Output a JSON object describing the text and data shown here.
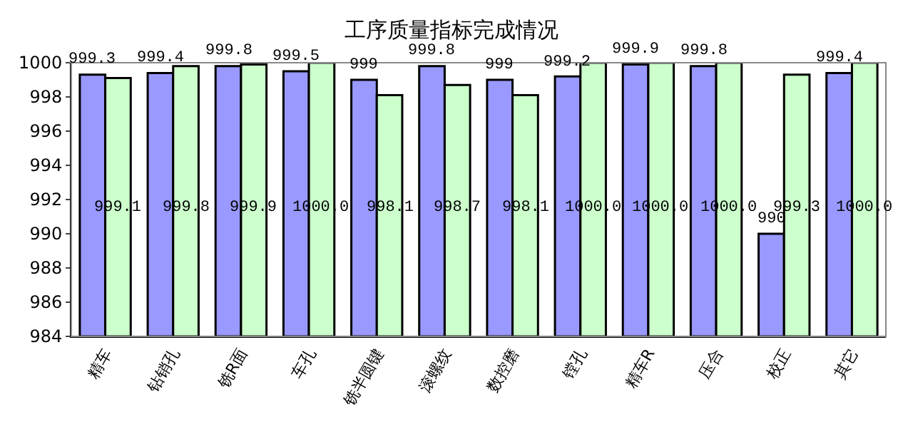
{
  "chart_data": {
    "type": "bar",
    "title": "工序质量指标完成情况",
    "categories": [
      "精车",
      "钻销孔",
      "铣R面",
      "车孔",
      "铣半圆键",
      "滚螺纹",
      "数控磨",
      "镗孔",
      "精车R",
      "压合",
      "校正",
      "其它"
    ],
    "series": [
      {
        "color": "#9999ff",
        "values": [
          999.3,
          999.4,
          999.8,
          999.5,
          999,
          999.8,
          999,
          999.2,
          999.9,
          999.8,
          990,
          999.4
        ],
        "value_labels": [
          "999.3",
          "999.4",
          "999.8",
          "999.5",
          "999",
          "999.8",
          "999",
          "999.2",
          "999.9",
          "999.8",
          "990",
          "999.4"
        ]
      },
      {
        "color": "#ccffcc",
        "values": [
          999.1,
          999.8,
          999.9,
          1000.0,
          998.1,
          998.7,
          998.1,
          1000.0,
          1000.0,
          1000.0,
          999.3,
          1000.0
        ],
        "value_labels": [
          "999.1",
          "999.8",
          "999.9",
          "1000.0",
          "998.1",
          "998.7",
          "998.1",
          "1000.0",
          "1000.0",
          "1000.0",
          "999.3",
          "1000.0"
        ]
      }
    ],
    "ylim": [
      984,
      1000
    ],
    "yticks": [
      984,
      986,
      988,
      990,
      992,
      994,
      996,
      998,
      1000
    ],
    "grid": false
  }
}
